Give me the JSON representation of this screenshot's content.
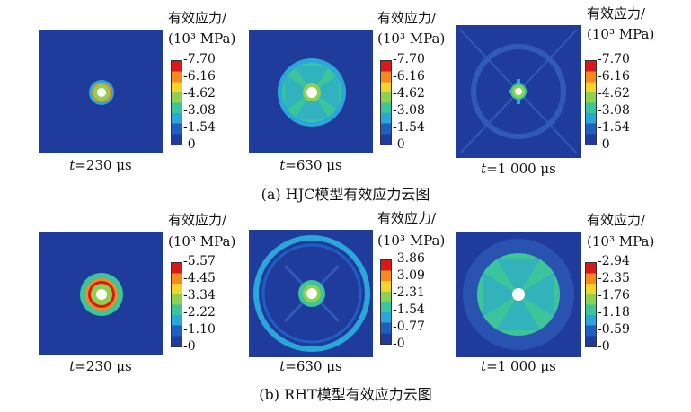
{
  "legend": {
    "title_line1": "有效应力/",
    "title_line2": "(10³ MPa)"
  },
  "rows": [
    {
      "caption": "(a) HJC模型有效应力云图",
      "panels": [
        {
          "time_var": "t",
          "time_rest": "=230 μs",
          "ticks": [
            "7.70",
            "6.16",
            "4.62",
            "3.08",
            "1.54",
            "0"
          ]
        },
        {
          "time_var": "t",
          "time_rest": "=630 μs",
          "ticks": [
            "7.70",
            "6.16",
            "4.62",
            "3.08",
            "1.54",
            "0"
          ]
        },
        {
          "time_var": "t",
          "time_rest": "=1 000 μs",
          "ticks": [
            "7.70",
            "6.16",
            "4.62",
            "3.08",
            "1.54",
            "0"
          ]
        }
      ]
    },
    {
      "caption": "(b) RHT模型有效应力云图",
      "panels": [
        {
          "time_var": "t",
          "time_rest": "=230 μs",
          "ticks": [
            "5.57",
            "4.45",
            "3.34",
            "2.22",
            "1.10",
            "0"
          ]
        },
        {
          "time_var": "t",
          "time_rest": "=630 μs",
          "ticks": [
            "3.86",
            "3.09",
            "2.31",
            "1.54",
            "0.77",
            "0"
          ]
        },
        {
          "time_var": "t",
          "time_rest": "=1 000 μs",
          "ticks": [
            "2.94",
            "2.35",
            "1.76",
            "1.18",
            "0.59",
            "0"
          ]
        }
      ]
    }
  ],
  "colors": {
    "background_blue": "#1f3c9c",
    "colorbar": [
      "#d7191c",
      "#f58a1f",
      "#f5d32a",
      "#8fd14f",
      "#3cc49a",
      "#2aa6d9",
      "#1f5fbf",
      "#1f3c9c"
    ]
  }
}
